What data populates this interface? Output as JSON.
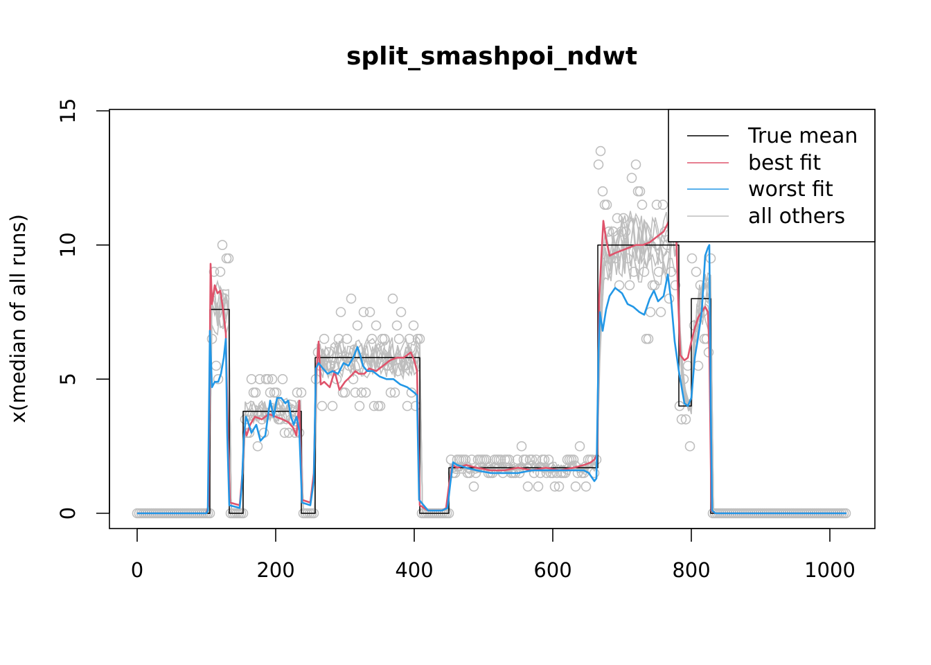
{
  "chart_data": {
    "type": "line",
    "title": "split_smashpoi_ndwt",
    "xlabel": "",
    "ylabel": "x(median of all runs)",
    "xlim": [
      0,
      1024
    ],
    "ylim": [
      0,
      15
    ],
    "x_ticks": [
      0,
      200,
      400,
      600,
      800,
      1000
    ],
    "y_ticks": [
      0,
      5,
      10,
      15
    ],
    "grid": false,
    "legend_position": "top-right",
    "legend": [
      "True mean",
      "best fit",
      "worst fit",
      "all others"
    ],
    "series": [
      {
        "name": "True mean",
        "color": "#000000",
        "points": [
          [
            0,
            0
          ],
          [
            105,
            0
          ],
          [
            105,
            7.6
          ],
          [
            133,
            7.6
          ],
          [
            133,
            0
          ],
          [
            153,
            0
          ],
          [
            153,
            3.8
          ],
          [
            237,
            3.8
          ],
          [
            237,
            0
          ],
          [
            257,
            0
          ],
          [
            257,
            5.8
          ],
          [
            408,
            5.8
          ],
          [
            408,
            0
          ],
          [
            450,
            0
          ],
          [
            450,
            1.7
          ],
          [
            665,
            1.7
          ],
          [
            665,
            10
          ],
          [
            782,
            10
          ],
          [
            782,
            4
          ],
          [
            800,
            4
          ],
          [
            800,
            8
          ],
          [
            828,
            8
          ],
          [
            828,
            0
          ],
          [
            1024,
            0
          ]
        ]
      },
      {
        "name": "best fit",
        "color": "#DF536B",
        "points": [
          [
            0,
            0
          ],
          [
            100,
            0
          ],
          [
            103,
            0.3
          ],
          [
            106,
            9.3
          ],
          [
            108,
            7.8
          ],
          [
            112,
            8.5
          ],
          [
            116,
            8.2
          ],
          [
            120,
            8.3
          ],
          [
            124,
            7.6
          ],
          [
            128,
            6.7
          ],
          [
            131,
            3
          ],
          [
            134,
            0.4
          ],
          [
            148,
            0.3
          ],
          [
            152,
            1.5
          ],
          [
            155,
            3.2
          ],
          [
            158,
            2.9
          ],
          [
            163,
            3.3
          ],
          [
            170,
            3.6
          ],
          [
            180,
            3.5
          ],
          [
            190,
            3.7
          ],
          [
            200,
            3.6
          ],
          [
            210,
            3.5
          ],
          [
            218,
            3.4
          ],
          [
            225,
            3.2
          ],
          [
            230,
            2.9
          ],
          [
            234,
            4.2
          ],
          [
            238,
            0.5
          ],
          [
            250,
            0.4
          ],
          [
            255,
            1.5
          ],
          [
            258,
            5
          ],
          [
            262,
            6.4
          ],
          [
            265,
            4.8
          ],
          [
            270,
            4.9
          ],
          [
            278,
            4.7
          ],
          [
            285,
            5.3
          ],
          [
            292,
            4.6
          ],
          [
            300,
            4.9
          ],
          [
            308,
            5.1
          ],
          [
            315,
            5.3
          ],
          [
            320,
            5.2
          ],
          [
            328,
            5.2
          ],
          [
            335,
            5.4
          ],
          [
            345,
            5.3
          ],
          [
            355,
            5.5
          ],
          [
            365,
            5.7
          ],
          [
            375,
            5.8
          ],
          [
            385,
            5.8
          ],
          [
            395,
            6
          ],
          [
            400,
            5.7
          ],
          [
            404,
            5.3
          ],
          [
            408,
            0.3
          ],
          [
            420,
            0.1
          ],
          [
            440,
            0.1
          ],
          [
            446,
            0.2
          ],
          [
            450,
            1
          ],
          [
            455,
            1.8
          ],
          [
            462,
            1.7
          ],
          [
            475,
            1.8
          ],
          [
            490,
            1.7
          ],
          [
            510,
            1.6
          ],
          [
            530,
            1.6
          ],
          [
            550,
            1.7
          ],
          [
            570,
            1.6
          ],
          [
            590,
            1.7
          ],
          [
            610,
            1.6
          ],
          [
            630,
            1.7
          ],
          [
            645,
            1.8
          ],
          [
            655,
            1.9
          ],
          [
            660,
            2
          ],
          [
            664,
            2.2
          ],
          [
            667,
            8
          ],
          [
            670,
            9.5
          ],
          [
            673,
            10.9
          ],
          [
            677,
            10.2
          ],
          [
            682,
            9.6
          ],
          [
            690,
            9.7
          ],
          [
            700,
            9.8
          ],
          [
            710,
            9.9
          ],
          [
            720,
            10
          ],
          [
            730,
            10
          ],
          [
            740,
            10.1
          ],
          [
            750,
            10.3
          ],
          [
            760,
            10.5
          ],
          [
            770,
            11
          ],
          [
            775,
            11.5
          ],
          [
            778,
            10.5
          ],
          [
            781,
            8
          ],
          [
            784,
            5.9
          ],
          [
            790,
            5.7
          ],
          [
            795,
            5.8
          ],
          [
            800,
            6.4
          ],
          [
            805,
            6.9
          ],
          [
            810,
            7.3
          ],
          [
            815,
            7.5
          ],
          [
            820,
            7.7
          ],
          [
            824,
            7.5
          ],
          [
            826,
            6.1
          ],
          [
            829,
            0.1
          ],
          [
            835,
            0
          ],
          [
            1024,
            0
          ]
        ]
      },
      {
        "name": "worst fit",
        "color": "#2297E6",
        "points": [
          [
            0,
            0
          ],
          [
            100,
            0
          ],
          [
            102,
            0.1
          ],
          [
            105,
            6.8
          ],
          [
            108,
            4.7
          ],
          [
            112,
            4.9
          ],
          [
            117,
            4.9
          ],
          [
            121,
            5.2
          ],
          [
            125,
            5.8
          ],
          [
            128,
            6.5
          ],
          [
            130,
            3
          ],
          [
            133,
            0.3
          ],
          [
            148,
            0.2
          ],
          [
            151,
            1
          ],
          [
            154,
            2.8
          ],
          [
            157,
            3.6
          ],
          [
            160,
            3.4
          ],
          [
            165,
            3
          ],
          [
            172,
            3.3
          ],
          [
            178,
            2.7
          ],
          [
            185,
            2.9
          ],
          [
            192,
            4.2
          ],
          [
            197,
            3.6
          ],
          [
            202,
            4.3
          ],
          [
            208,
            4.3
          ],
          [
            214,
            4.1
          ],
          [
            218,
            4.2
          ],
          [
            222,
            3.6
          ],
          [
            226,
            3.3
          ],
          [
            230,
            3.6
          ],
          [
            234,
            3.1
          ],
          [
            238,
            0.4
          ],
          [
            250,
            0.3
          ],
          [
            255,
            1.2
          ],
          [
            258,
            5.4
          ],
          [
            262,
            5.6
          ],
          [
            268,
            5.4
          ],
          [
            275,
            5.2
          ],
          [
            282,
            5.3
          ],
          [
            290,
            5.2
          ],
          [
            298,
            5.6
          ],
          [
            305,
            5.5
          ],
          [
            312,
            5.8
          ],
          [
            318,
            6.2
          ],
          [
            322,
            5.9
          ],
          [
            326,
            5.5
          ],
          [
            332,
            5.3
          ],
          [
            340,
            5.3
          ],
          [
            350,
            5.1
          ],
          [
            360,
            5
          ],
          [
            370,
            5
          ],
          [
            380,
            4.8
          ],
          [
            390,
            4.7
          ],
          [
            400,
            4.5
          ],
          [
            404,
            4.4
          ],
          [
            407,
            0.5
          ],
          [
            420,
            0.1
          ],
          [
            440,
            0.1
          ],
          [
            448,
            0.2
          ],
          [
            452,
            1.1
          ],
          [
            456,
            1.9
          ],
          [
            462,
            1.8
          ],
          [
            475,
            1.7
          ],
          [
            490,
            1.6
          ],
          [
            510,
            1.5
          ],
          [
            530,
            1.5
          ],
          [
            550,
            1.5
          ],
          [
            570,
            1.6
          ],
          [
            590,
            1.6
          ],
          [
            610,
            1.6
          ],
          [
            630,
            1.6
          ],
          [
            645,
            1.6
          ],
          [
            652,
            1.5
          ],
          [
            660,
            1.2
          ],
          [
            663,
            1.3
          ],
          [
            666,
            6
          ],
          [
            668,
            7.5
          ],
          [
            672,
            6.8
          ],
          [
            677,
            7.6
          ],
          [
            682,
            8.1
          ],
          [
            690,
            8.4
          ],
          [
            700,
            8.2
          ],
          [
            708,
            7.8
          ],
          [
            716,
            7.7
          ],
          [
            725,
            7.5
          ],
          [
            732,
            7.4
          ],
          [
            740,
            8
          ],
          [
            746,
            8.3
          ],
          [
            752,
            7.9
          ],
          [
            760,
            8.1
          ],
          [
            766,
            8.9
          ],
          [
            771,
            7.9
          ],
          [
            776,
            6.4
          ],
          [
            782,
            5.3
          ],
          [
            786,
            4.7
          ],
          [
            790,
            4.1
          ],
          [
            795,
            4
          ],
          [
            800,
            4.3
          ],
          [
            805,
            5.8
          ],
          [
            810,
            6.6
          ],
          [
            815,
            7.5
          ],
          [
            820,
            9.6
          ],
          [
            824,
            9.9
          ],
          [
            826,
            10
          ],
          [
            828,
            4
          ],
          [
            830,
            0.1
          ],
          [
            835,
            0
          ],
          [
            1024,
            0
          ]
        ]
      }
    ],
    "others_color": "#BEBEBE"
  }
}
